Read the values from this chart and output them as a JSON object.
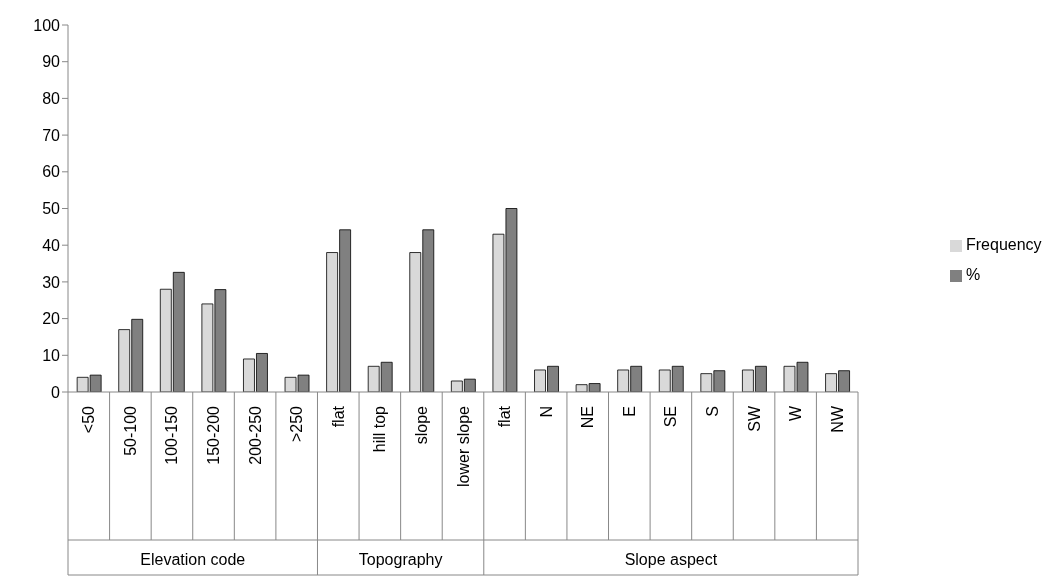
{
  "chart_data": {
    "type": "bar",
    "categories": [
      "<50",
      "50-100",
      "100-150",
      "150-200",
      "200-250",
      ">250",
      "flat",
      "hill top",
      "slope",
      "lower slope",
      "flat",
      "N",
      "NE",
      "E",
      "SE",
      "S",
      "SW",
      "W",
      "NW"
    ],
    "series": [
      {
        "name": "Frequency",
        "color": "#d9d9d9",
        "values": [
          4,
          17,
          28,
          24,
          9,
          4,
          38,
          7,
          38,
          3,
          43,
          6,
          2,
          6,
          6,
          5,
          6,
          7,
          5
        ]
      },
      {
        "name": "%",
        "color": "#808080",
        "values": [
          4.6,
          19.8,
          32.6,
          27.9,
          10.5,
          4.6,
          44.2,
          8.1,
          44.2,
          3.5,
          50,
          7,
          2.3,
          7,
          7,
          5.8,
          7,
          8.1,
          5.8
        ]
      }
    ],
    "annotations": [
      "Elevation code",
      "Topography",
      "Slope aspect"
    ],
    "ylim": [
      0,
      100
    ],
    "yticks": [
      0,
      10,
      20,
      30,
      40,
      50,
      60,
      70,
      80,
      90,
      100
    ],
    "legend": "right"
  }
}
